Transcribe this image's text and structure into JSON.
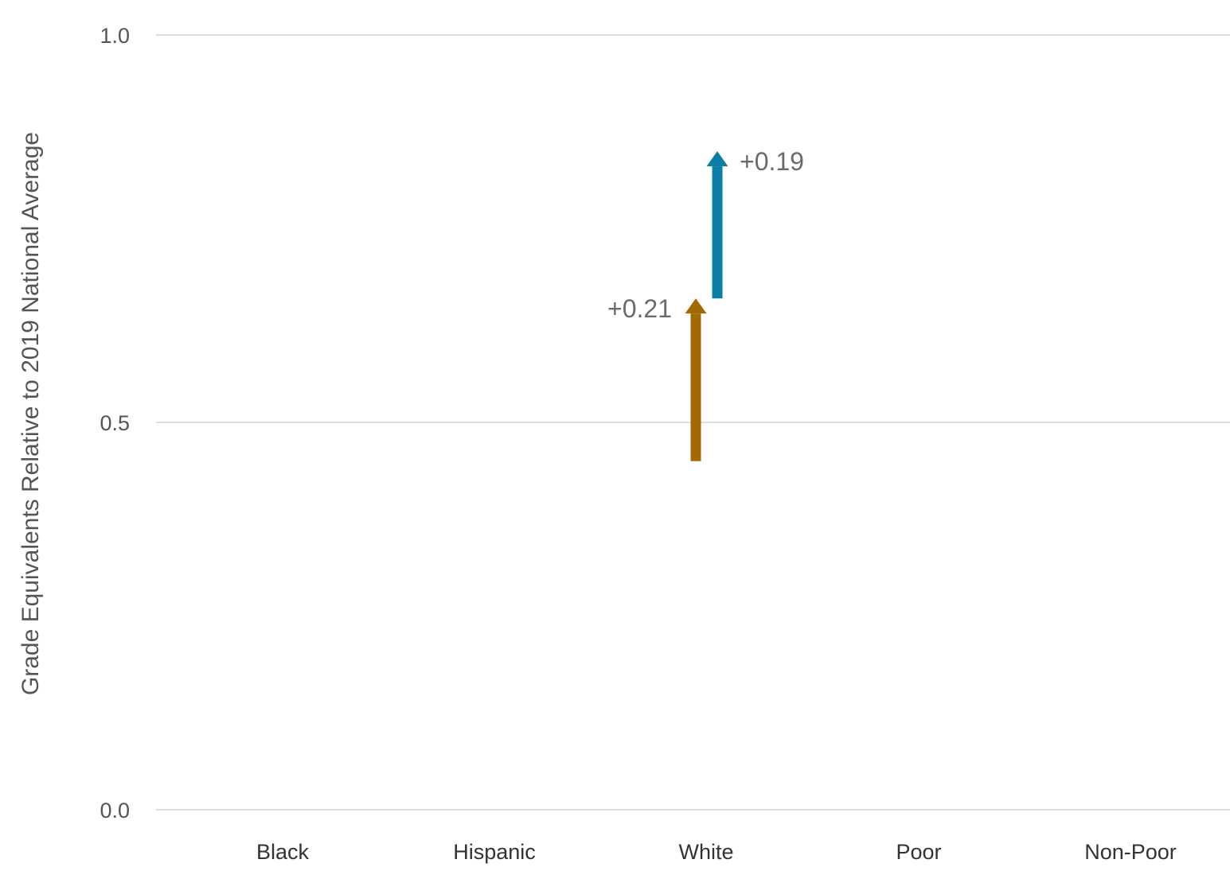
{
  "chart_data": {
    "type": "arrow",
    "ylabel": "Grade Equivalents Relative to 2019 National Average",
    "ylim": [
      0.0,
      1.0
    ],
    "yticks": [
      "0.0",
      "0.5",
      "1.0"
    ],
    "grid": true,
    "categories": [
      "Black",
      "Hispanic",
      "White",
      "Poor",
      "Non-Poor"
    ],
    "series": [
      {
        "color": "#A36A00",
        "points": [
          {
            "category": "White",
            "start": 0.45,
            "end": 0.66,
            "label": "+0.21"
          }
        ]
      },
      {
        "color": "#0A7EA4",
        "points": [
          {
            "category": "White",
            "start": 0.66,
            "end": 0.85,
            "label": "+0.19"
          }
        ]
      }
    ]
  }
}
